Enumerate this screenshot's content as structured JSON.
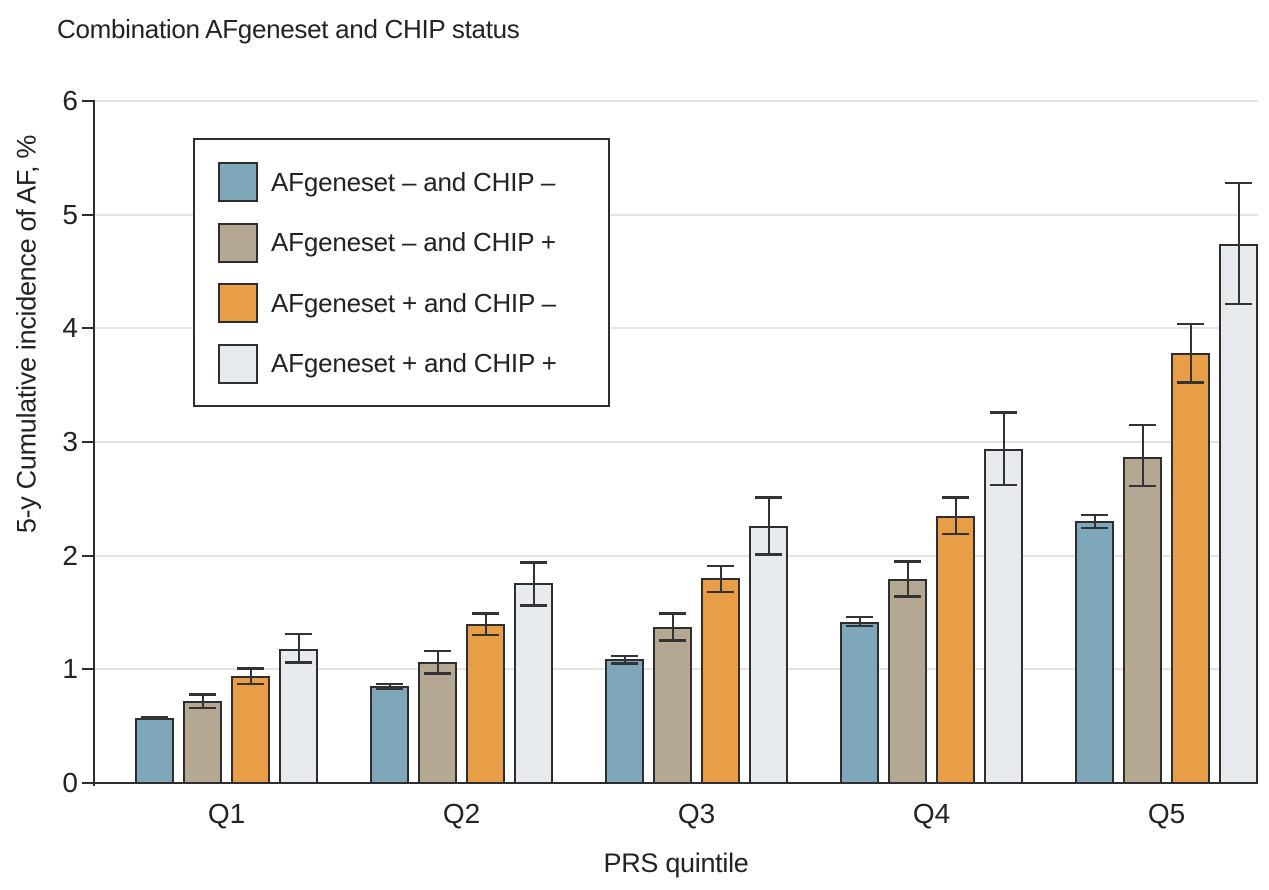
{
  "chart_data": {
    "type": "bar",
    "title": "Combination AFgeneset and CHIP status",
    "xlabel": "PRS quintile",
    "ylabel": "5-y Cumulative incidence of AF, %",
    "categories": [
      "Q1",
      "Q2",
      "Q3",
      "Q4",
      "Q5"
    ],
    "ylim": [
      0,
      6
    ],
    "yticks": [
      0,
      1,
      2,
      3,
      4,
      5,
      6
    ],
    "grid": true,
    "legend_position": "inside-upper-left",
    "error_bars": true,
    "colors": {
      "axis": "#2e2e30",
      "gridline": "#e4e4e6",
      "text": "#232324"
    },
    "series": [
      {
        "name": "AFgeneset – and CHIP –",
        "color": "#7ea7ba",
        "values": [
          0.57,
          0.85,
          1.09,
          1.42,
          2.3
        ],
        "err_lo": [
          0.02,
          0.03,
          0.05,
          0.05,
          0.07
        ],
        "err_hi": [
          0.02,
          0.03,
          0.04,
          0.05,
          0.07
        ]
      },
      {
        "name": "AFgeneset – and CHIP +",
        "color": "#b4a892",
        "values": [
          0.72,
          1.06,
          1.37,
          1.79,
          2.87
        ],
        "err_lo": [
          0.07,
          0.11,
          0.13,
          0.16,
          0.27
        ],
        "err_hi": [
          0.07,
          0.11,
          0.13,
          0.17,
          0.29
        ]
      },
      {
        "name": "AFgeneset + and CHIP –",
        "color": "#e89e46",
        "values": [
          0.94,
          1.4,
          1.8,
          2.35,
          3.78
        ],
        "err_lo": [
          0.08,
          0.11,
          0.13,
          0.17,
          0.27
        ],
        "err_hi": [
          0.08,
          0.1,
          0.12,
          0.17,
          0.27
        ]
      },
      {
        "name": "AFgeneset + and CHIP +",
        "color": "#e7ebee",
        "values": [
          1.18,
          1.76,
          2.26,
          2.94,
          4.74
        ],
        "err_lo": [
          0.13,
          0.21,
          0.26,
          0.33,
          0.54
        ],
        "err_hi": [
          0.14,
          0.19,
          0.26,
          0.33,
          0.55
        ]
      }
    ]
  }
}
